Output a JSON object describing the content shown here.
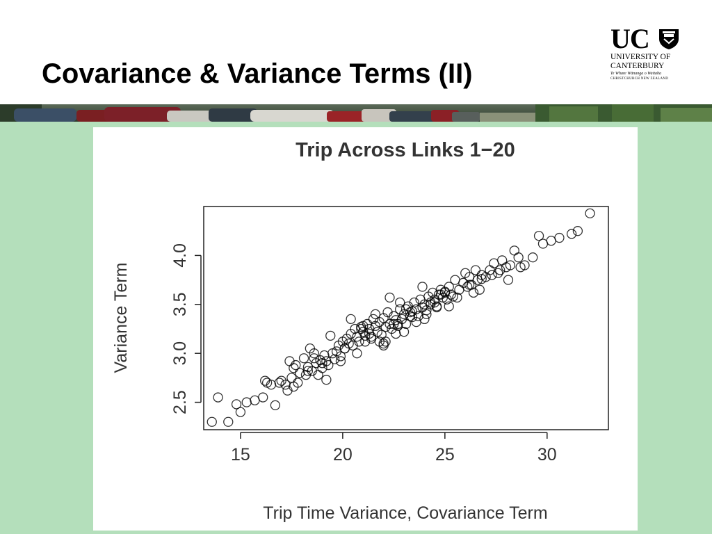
{
  "slide": {
    "title": "Covariance & Variance Terms (II)"
  },
  "logo": {
    "uc": "UC",
    "line1": "UNIVERSITY OF",
    "line2": "CANTERBURY",
    "line3": "Te Whare Wānanga o Waitaha",
    "line4": "CHRISTCHURCH NEW ZEALAND"
  },
  "colors": {
    "background_green": "#b4dfbb",
    "title_text": "#000000",
    "points": "#000000"
  },
  "chart_data": {
    "type": "scatter",
    "title": "Trip Across Links 1−20",
    "xlabel": "Trip Time Variance, Covariance Term",
    "ylabel": "Variance Term",
    "xlim": [
      13.2,
      33.0
    ],
    "ylim": [
      2.22,
      4.5
    ],
    "xticks": [
      "15",
      "20",
      "25",
      "30"
    ],
    "yticks": [
      "2.5",
      "3.0",
      "3.5",
      "4.0"
    ],
    "grid": false,
    "marker": "open-circle",
    "x": [
      13.6,
      14.4,
      13.9,
      14.8,
      15.0,
      15.3,
      15.7,
      16.1,
      16.3,
      16.5,
      16.2,
      16.7,
      17.0,
      17.3,
      17.4,
      17.5,
      17.6,
      17.7,
      17.8,
      17.6,
      17.9,
      18.1,
      18.3,
      18.4,
      18.5,
      18.6,
      18.7,
      18.8,
      18.9,
      19.0,
      19.1,
      19.2,
      19.3,
      19.2,
      19.5,
      19.6,
      19.7,
      19.8,
      19.9,
      20.0,
      20.1,
      20.2,
      20.3,
      20.4,
      20.5,
      20.6,
      20.7,
      20.8,
      20.9,
      21.0,
      21.1,
      21.2,
      21.3,
      21.4,
      21.5,
      21.6,
      21.7,
      21.8,
      21.9,
      22.0,
      22.1,
      22.2,
      22.3,
      22.4,
      22.5,
      22.6,
      22.7,
      22.8,
      22.9,
      23.0,
      23.1,
      23.2,
      23.3,
      23.4,
      23.5,
      23.6,
      23.7,
      23.8,
      23.9,
      24.0,
      24.1,
      24.2,
      24.3,
      24.4,
      24.5,
      24.6,
      24.7,
      24.8,
      24.9,
      25.0,
      25.1,
      25.2,
      25.3,
      25.5,
      25.7,
      25.9,
      26.0,
      26.1,
      26.2,
      26.3,
      26.5,
      26.6,
      26.7,
      26.8,
      27.0,
      27.2,
      27.4,
      27.6,
      27.8,
      28.0,
      28.2,
      28.4,
      28.6,
      28.9,
      29.3,
      29.6,
      29.8,
      30.2,
      30.6,
      31.2,
      31.5,
      32.1,
      20.4,
      21.0,
      22.0,
      22.3,
      21.6,
      22.8,
      23.4,
      23.9,
      24.3,
      24.8,
      19.4,
      18.6,
      17.2,
      20.7,
      21.8,
      22.6,
      23.6,
      24.6,
      25.6,
      26.4,
      27.3,
      28.1,
      28.7,
      19.9,
      21.3,
      22.1,
      23.1,
      24.0,
      25.2,
      26.2,
      16.9,
      18.2,
      20.1,
      21.1,
      22.5,
      23.3,
      24.5,
      25.4,
      26.8,
      27.7,
      22.0,
      21.4,
      23.0,
      20.9,
      22.7,
      24.1,
      25.0,
      19.0,
      18.3
    ],
    "y": [
      2.3,
      2.3,
      2.55,
      2.48,
      2.4,
      2.5,
      2.52,
      2.55,
      2.7,
      2.68,
      2.72,
      2.47,
      2.72,
      2.62,
      2.92,
      2.75,
      2.66,
      2.88,
      2.7,
      2.85,
      2.8,
      2.95,
      2.86,
      3.05,
      2.82,
      2.95,
      2.9,
      2.78,
      2.93,
      2.85,
      2.98,
      2.73,
      2.88,
      2.92,
      3.0,
      2.94,
      3.02,
      3.08,
      2.97,
      3.12,
      3.05,
      3.15,
      3.1,
      3.2,
      3.08,
      3.25,
      3.17,
      3.12,
      3.27,
      3.22,
      3.18,
      3.3,
      3.25,
      3.15,
      3.35,
      3.28,
      3.22,
      3.32,
      3.19,
      3.36,
      3.12,
      3.42,
      3.3,
      3.25,
      3.38,
      3.34,
      3.28,
      3.45,
      3.35,
      3.4,
      3.3,
      3.48,
      3.42,
      3.37,
      3.52,
      3.45,
      3.38,
      3.55,
      3.47,
      3.5,
      3.44,
      3.58,
      3.52,
      3.62,
      3.55,
      3.48,
      3.6,
      3.65,
      3.57,
      3.62,
      3.55,
      3.68,
      3.6,
      3.75,
      3.65,
      3.72,
      3.82,
      3.68,
      3.78,
      3.7,
      3.85,
      3.75,
      3.65,
      3.8,
      3.78,
      3.85,
      3.92,
      3.82,
      3.95,
      3.88,
      3.9,
      4.05,
      3.98,
      3.9,
      3.98,
      4.2,
      4.12,
      4.15,
      4.18,
      4.22,
      4.25,
      4.43,
      3.35,
      3.28,
      3.08,
      3.57,
      3.4,
      3.52,
      3.43,
      3.68,
      3.5,
      3.6,
      3.18,
      3.0,
      2.68,
      3.0,
      3.12,
      3.2,
      3.32,
      3.47,
      3.57,
      3.62,
      3.8,
      3.75,
      3.88,
      2.92,
      3.2,
      3.27,
      3.45,
      3.35,
      3.48,
      3.7,
      2.7,
      2.78,
      3.05,
      3.12,
      3.3,
      3.38,
      3.52,
      3.58,
      3.76,
      3.85,
      3.1,
      3.17,
      3.22,
      3.25,
      3.3,
      3.4,
      3.63,
      2.9,
      2.82
    ]
  }
}
